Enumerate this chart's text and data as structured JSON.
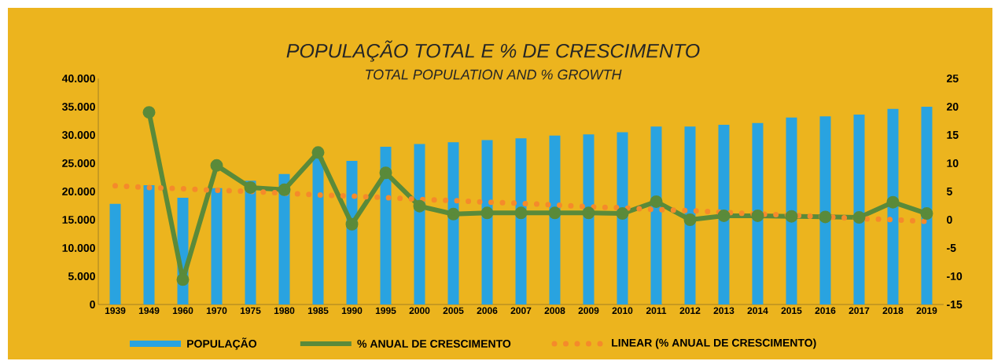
{
  "chart_data": {
    "type": "bar",
    "title": "POPULAÇÃO TOTAL E % DE CRESCIMENTO",
    "subtitle": "TOTAL POPULATION AND % GROWTH",
    "categories": [
      "1939",
      "1949",
      "1960",
      "1970",
      "1975",
      "1980",
      "1985",
      "1990",
      "1995",
      "2000",
      "2005",
      "2006",
      "2007",
      "2008",
      "2009",
      "2010",
      "2011",
      "2012",
      "2013",
      "2014",
      "2015",
      "2016",
      "2017",
      "2018",
      "2019"
    ],
    "series": [
      {
        "name": "POPULAÇÃO",
        "color": "#29a3e0",
        "values": [
          17800,
          21100,
          18900,
          20600,
          21900,
          23100,
          26000,
          25400,
          27900,
          28400,
          28700,
          29100,
          29400,
          29900,
          30100,
          30500,
          31500,
          31500,
          31800,
          32100,
          33100,
          33300,
          33600,
          34600,
          35000
        ]
      },
      {
        "name": "% ANUAL DE CRESCIMENTO",
        "type": "line",
        "axis": "y2",
        "color": "#5a8a3a",
        "marker": "circle",
        "line_style": "solid",
        "values": [
          null,
          19.0,
          -10.6,
          9.6,
          5.7,
          5.3,
          11.9,
          -0.8,
          8.3,
          2.4,
          1.0,
          1.2,
          1.2,
          1.2,
          1.2,
          1.1,
          3.2,
          0.0,
          0.7,
          0.7,
          0.6,
          0.5,
          0.4,
          3.1,
          1.1
        ]
      },
      {
        "name": "LINEAR (% ANUAL DE CRESCIMENTO)",
        "type": "line",
        "axis": "y2",
        "color": "#f58a2b",
        "marker": "none",
        "line_style": "dotted",
        "values": [
          6.0,
          5.7,
          5.5,
          5.2,
          5.0,
          4.7,
          4.4,
          4.2,
          3.9,
          3.6,
          3.4,
          3.1,
          2.9,
          2.6,
          2.3,
          2.1,
          1.8,
          1.6,
          1.3,
          1.0,
          0.8,
          0.5,
          0.2,
          0.0,
          -0.3
        ]
      }
    ],
    "ylim": [
      0,
      40000
    ],
    "yticks": [
      {
        "value": 0,
        "label": "0"
      },
      {
        "value": 5000,
        "label": "5.000"
      },
      {
        "value": 10000,
        "label": "10.000"
      },
      {
        "value": 15000,
        "label": "15.000"
      },
      {
        "value": 20000,
        "label": "20.000"
      },
      {
        "value": 25000,
        "label": "25.000"
      },
      {
        "value": 30000,
        "label": "30.000"
      },
      {
        "value": 35000,
        "label": "35.000"
      },
      {
        "value": 40000,
        "label": "40.000"
      }
    ],
    "y2lim": [
      -15,
      25
    ],
    "y2ticks": [
      -15,
      -10,
      -5,
      0,
      5,
      10,
      15,
      20,
      25
    ],
    "legend": "bottom"
  }
}
